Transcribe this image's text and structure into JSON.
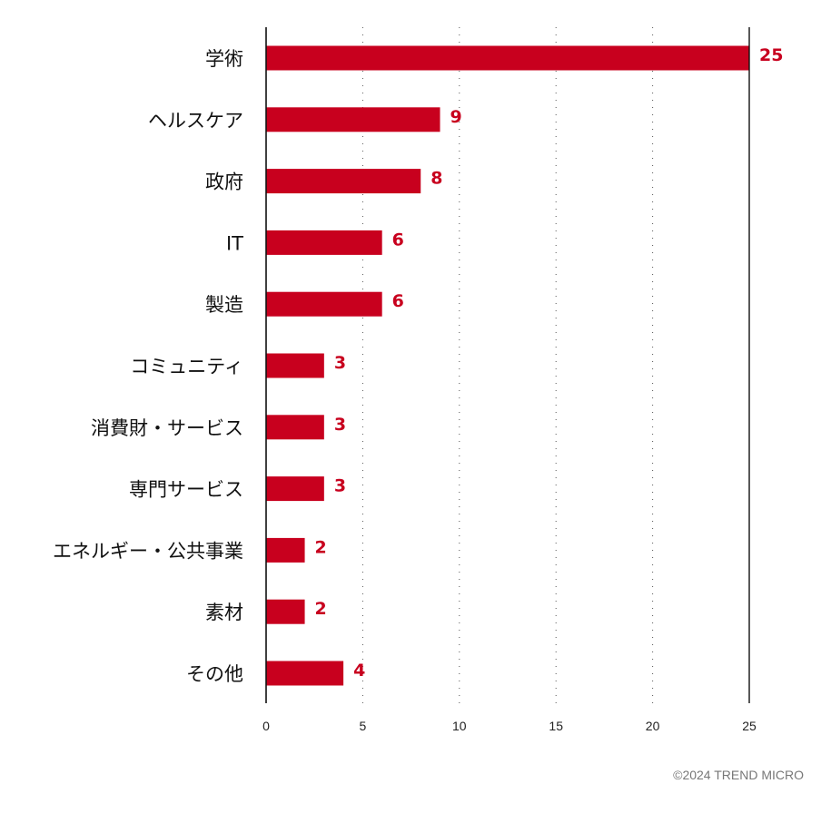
{
  "chart_data": {
    "type": "bar",
    "orientation": "horizontal",
    "categories": [
      "学術",
      "ヘルスケア",
      "政府",
      "IT",
      "製造",
      "コミュニティ",
      "消費財・サービス",
      "専門サービス",
      "エネルギー・公共事業",
      "素材",
      "その他"
    ],
    "values": [
      25,
      9,
      8,
      6,
      6,
      3,
      3,
      3,
      2,
      2,
      4
    ],
    "value_labels": [
      "25",
      "9",
      "8",
      "6",
      "6",
      "3",
      "3",
      "3",
      "2",
      "2",
      "4"
    ],
    "xlim": [
      0,
      25
    ],
    "xticks": [
      0,
      5,
      10,
      15,
      20,
      25
    ],
    "xtick_labels": [
      "0",
      "5",
      "10",
      "15",
      "20",
      "25"
    ],
    "title": "",
    "xlabel": "",
    "ylabel": "",
    "grid": "vertical dotted",
    "bar_color": "#c8001e",
    "value_label_color": "#c8001e"
  },
  "footer": {
    "copyright": "©2024 TREND MICRO"
  }
}
